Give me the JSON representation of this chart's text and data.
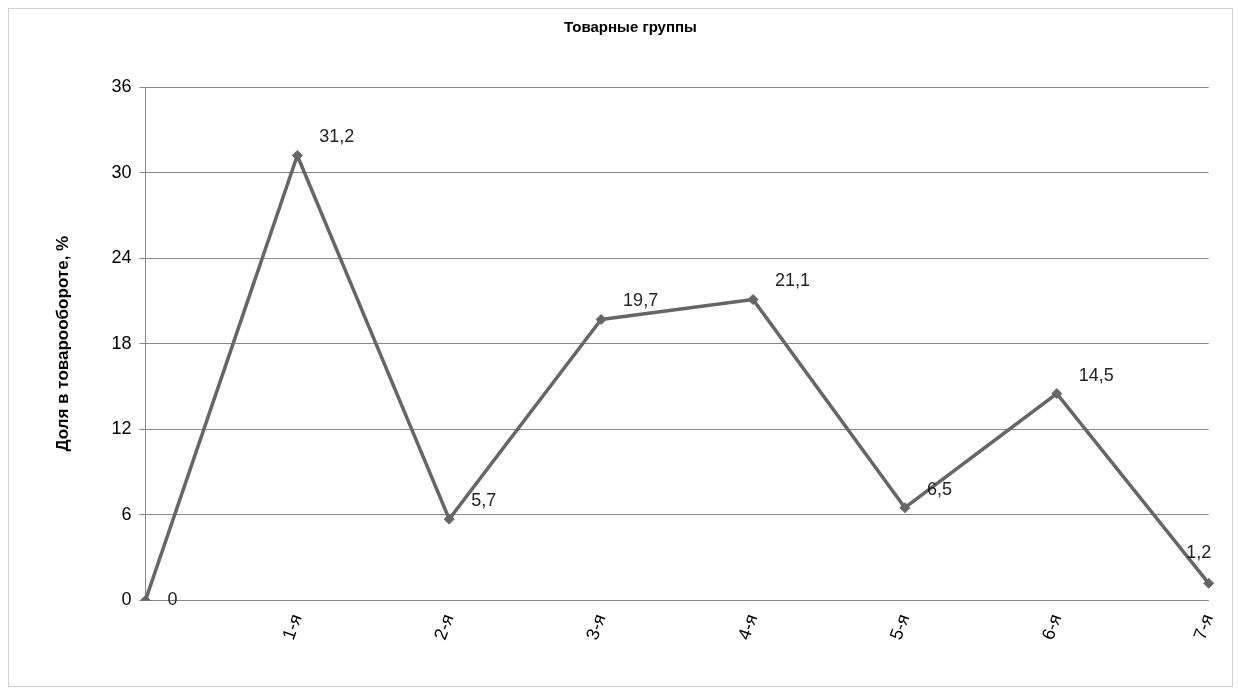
{
  "chart_data": {
    "type": "line",
    "title": "Товарные группы",
    "ylabel": "Доля в товарообороте, %",
    "categories": [
      null,
      "1-я",
      "2-я",
      "3-я",
      "4-я",
      "5-я",
      "6-я",
      "7-я"
    ],
    "values": [
      0,
      31.2,
      5.7,
      19.7,
      21.1,
      6.5,
      14.5,
      1.2
    ],
    "value_labels": [
      "0",
      "31,2",
      "5,7",
      "19,7",
      "21,1",
      "6,5",
      "14,5",
      "1,2"
    ],
    "color": "#666666",
    "ylim": [
      0,
      36
    ],
    "yticks": [
      0,
      6,
      12,
      18,
      24,
      30,
      36
    ],
    "grid": "y",
    "marker": "diamond",
    "line_style": "solid"
  }
}
